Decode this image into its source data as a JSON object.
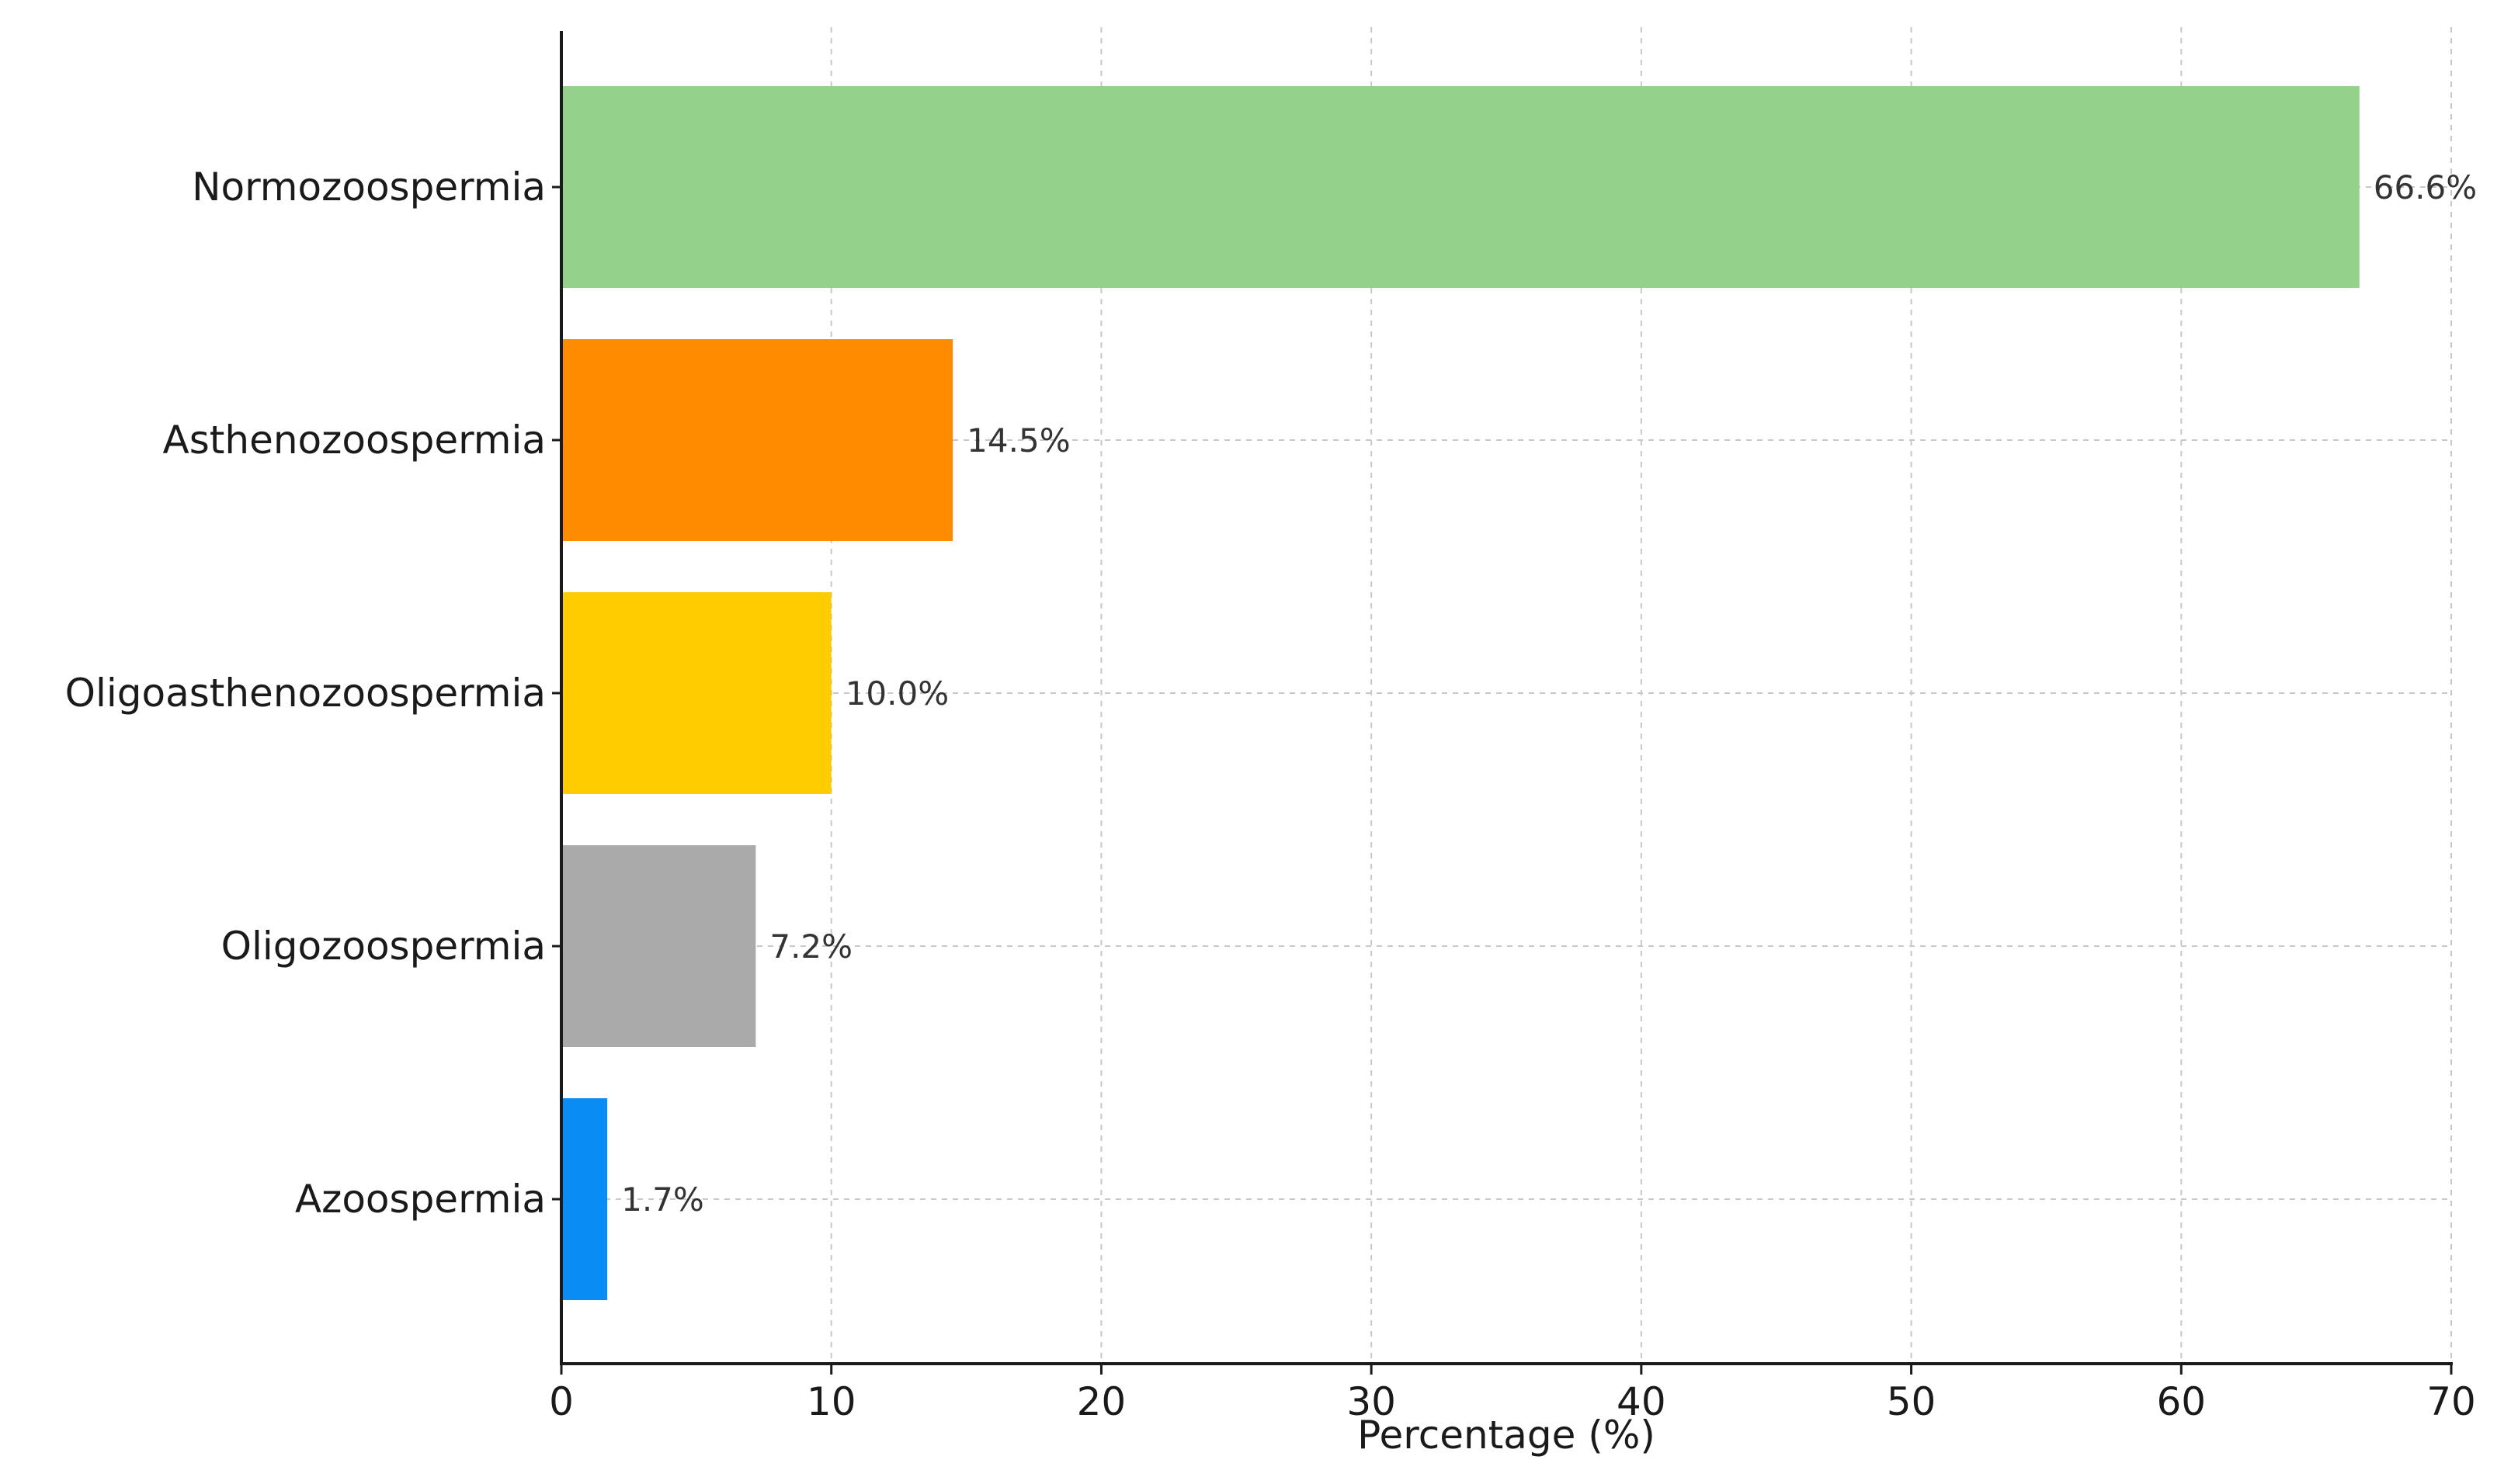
{
  "chart_data": {
    "type": "bar",
    "orientation": "horizontal",
    "categories": [
      "Normozoospermia",
      "Asthenozoospermia",
      "Oligoasthenozoospermia",
      "Oligozoospermia",
      "Azoospermia"
    ],
    "values": [
      66.6,
      14.5,
      10.0,
      7.2,
      1.7
    ],
    "value_labels": [
      "66.6%",
      "14.5%",
      "10.0%",
      "7.2%",
      "1.7%"
    ],
    "colors": [
      "#94d18a",
      "#ff8c00",
      "#ffcc00",
      "#aaaaaa",
      "#0a8cf5"
    ],
    "title": "",
    "xlabel": "Percentage (%)",
    "ylabel": "",
    "xlim": [
      0,
      70
    ],
    "xticks": [
      0,
      10,
      20,
      30,
      40,
      50,
      60,
      70
    ],
    "grid": true,
    "legend": false
  }
}
